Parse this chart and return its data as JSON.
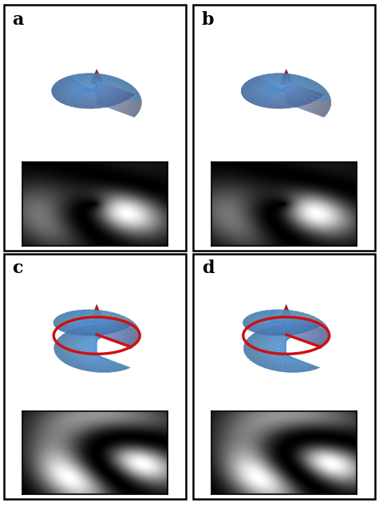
{
  "panels": [
    "a",
    "b",
    "c",
    "d"
  ],
  "panel_label_fontsize": 16,
  "panel_label_weight": "bold",
  "background_color": "#ffffff",
  "border_color": "#000000",
  "surface_edgecolor": "#4488cc",
  "surface_edge_lw": 0.3,
  "cone_color": "#8b1a1a",
  "red_line_color": "#cc1111",
  "panel_configs": [
    {
      "label": "a",
      "l": 1,
      "flip": false
    },
    {
      "label": "b",
      "l": 1,
      "flip": false
    },
    {
      "label": "c",
      "l": 2,
      "flip": false
    },
    {
      "label": "d",
      "l": 2,
      "flip": false
    }
  ]
}
